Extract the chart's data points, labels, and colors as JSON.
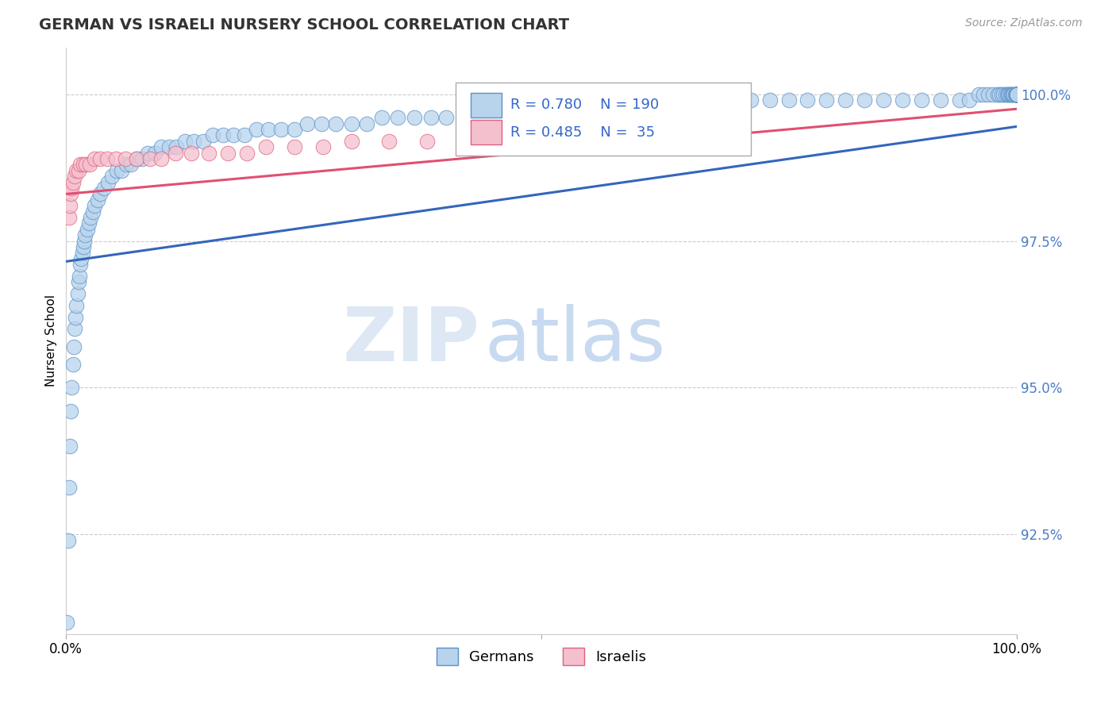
{
  "title": "GERMAN VS ISRAELI NURSERY SCHOOL CORRELATION CHART",
  "source_text": "Source: ZipAtlas.com",
  "ylabel": "Nursery School",
  "xlim": [
    0.0,
    1.0
  ],
  "ylim": [
    0.908,
    1.008
  ],
  "ytick_vals": [
    0.925,
    0.95,
    0.975,
    1.0
  ],
  "ytick_labels": [
    "92.5%",
    "95.0%",
    "97.5%",
    "100.0%"
  ],
  "german_color": "#b8d4ec",
  "german_edge_color": "#5b8fc9",
  "israeli_color": "#f5c0ce",
  "israeli_edge_color": "#e0607a",
  "german_line_color": "#3366bb",
  "israeli_line_color": "#e05070",
  "legend_r_german": "R = 0.780",
  "legend_n_german": "N = 190",
  "legend_r_israeli": "R = 0.485",
  "legend_n_israeli": "N =  35",
  "watermark_zip": "ZIP",
  "watermark_atlas": "atlas",
  "background_color": "#ffffff",
  "german_x": [
    0.001,
    0.002,
    0.003,
    0.004,
    0.005,
    0.006,
    0.007,
    0.008,
    0.009,
    0.01,
    0.011,
    0.012,
    0.013,
    0.014,
    0.015,
    0.016,
    0.017,
    0.018,
    0.019,
    0.02,
    0.022,
    0.024,
    0.026,
    0.028,
    0.03,
    0.033,
    0.036,
    0.04,
    0.044,
    0.048,
    0.053,
    0.058,
    0.063,
    0.068,
    0.074,
    0.08,
    0.086,
    0.093,
    0.1,
    0.108,
    0.116,
    0.125,
    0.134,
    0.144,
    0.154,
    0.165,
    0.176,
    0.188,
    0.2,
    0.213,
    0.226,
    0.24,
    0.254,
    0.269,
    0.284,
    0.3,
    0.316,
    0.332,
    0.349,
    0.366,
    0.384,
    0.4,
    0.42,
    0.44,
    0.46,
    0.48,
    0.5,
    0.52,
    0.54,
    0.56,
    0.58,
    0.6,
    0.62,
    0.64,
    0.66,
    0.68,
    0.7,
    0.72,
    0.74,
    0.76,
    0.78,
    0.8,
    0.82,
    0.84,
    0.86,
    0.88,
    0.9,
    0.92,
    0.94,
    0.95,
    0.96,
    0.965,
    0.97,
    0.975,
    0.98,
    0.982,
    0.984,
    0.986,
    0.988,
    0.99,
    0.991,
    0.992,
    0.993,
    0.994,
    0.995,
    0.996,
    0.997,
    0.998,
    0.999,
    1.0,
    1.0,
    1.0,
    1.0,
    1.0,
    1.0,
    1.0,
    1.0,
    1.0,
    1.0,
    1.0,
    1.0,
    1.0,
    1.0,
    1.0,
    1.0,
    1.0,
    1.0,
    1.0,
    1.0,
    1.0,
    1.0,
    1.0,
    1.0,
    1.0,
    1.0,
    1.0,
    1.0,
    1.0,
    1.0,
    1.0,
    1.0,
    1.0,
    1.0,
    1.0,
    1.0,
    1.0,
    1.0,
    1.0,
    1.0,
    1.0,
    1.0,
    1.0,
    1.0,
    1.0,
    1.0,
    1.0,
    1.0,
    1.0,
    1.0,
    1.0,
    1.0,
    1.0,
    1.0,
    1.0,
    1.0,
    1.0,
    1.0,
    1.0,
    1.0,
    1.0,
    1.0,
    1.0,
    1.0,
    1.0,
    1.0,
    1.0,
    1.0,
    1.0,
    1.0,
    1.0,
    1.0,
    1.0,
    1.0,
    1.0,
    1.0,
    1.0,
    1.0,
    1.0,
    1.0,
    1.0,
    1.0,
    1.0,
    1.0,
    1.0,
    1.0,
    1.0,
    1.0,
    1.0,
    1.0,
    1.0
  ],
  "german_y": [
    0.91,
    0.924,
    0.933,
    0.94,
    0.946,
    0.95,
    0.954,
    0.957,
    0.96,
    0.962,
    0.964,
    0.966,
    0.968,
    0.969,
    0.971,
    0.972,
    0.973,
    0.974,
    0.975,
    0.976,
    0.977,
    0.978,
    0.979,
    0.98,
    0.981,
    0.982,
    0.983,
    0.984,
    0.985,
    0.986,
    0.987,
    0.987,
    0.988,
    0.988,
    0.989,
    0.989,
    0.99,
    0.99,
    0.991,
    0.991,
    0.991,
    0.992,
    0.992,
    0.992,
    0.993,
    0.993,
    0.993,
    0.993,
    0.994,
    0.994,
    0.994,
    0.994,
    0.995,
    0.995,
    0.995,
    0.995,
    0.995,
    0.996,
    0.996,
    0.996,
    0.996,
    0.996,
    0.997,
    0.997,
    0.997,
    0.997,
    0.997,
    0.997,
    0.997,
    0.998,
    0.998,
    0.998,
    0.998,
    0.998,
    0.998,
    0.998,
    0.998,
    0.999,
    0.999,
    0.999,
    0.999,
    0.999,
    0.999,
    0.999,
    0.999,
    0.999,
    0.999,
    0.999,
    0.999,
    0.999,
    1.0,
    1.0,
    1.0,
    1.0,
    1.0,
    1.0,
    1.0,
    1.0,
    1.0,
    1.0,
    1.0,
    1.0,
    1.0,
    1.0,
    1.0,
    1.0,
    1.0,
    1.0,
    1.0,
    1.0,
    1.0,
    1.0,
    1.0,
    1.0,
    1.0,
    1.0,
    1.0,
    1.0,
    1.0,
    1.0,
    1.0,
    1.0,
    1.0,
    1.0,
    1.0,
    1.0,
    1.0,
    1.0,
    1.0,
    1.0,
    1.0,
    1.0,
    1.0,
    1.0,
    1.0,
    1.0,
    1.0,
    1.0,
    1.0,
    1.0,
    1.0,
    1.0,
    1.0,
    1.0,
    1.0,
    1.0,
    1.0,
    1.0,
    1.0,
    1.0,
    1.0,
    1.0,
    1.0,
    1.0,
    1.0,
    1.0,
    1.0,
    1.0,
    1.0,
    1.0,
    1.0,
    1.0,
    1.0,
    1.0,
    1.0,
    1.0,
    1.0,
    1.0,
    1.0,
    1.0,
    1.0,
    1.0,
    1.0,
    1.0,
    1.0,
    1.0,
    1.0,
    1.0,
    1.0,
    1.0,
    1.0,
    1.0,
    1.0,
    1.0,
    1.0,
    1.0,
    1.0,
    1.0,
    1.0,
    1.0,
    1.0,
    1.0,
    1.0,
    1.0,
    1.0,
    1.0,
    1.0,
    1.0,
    1.0,
    1.0
  ],
  "israeli_x": [
    0.003,
    0.004,
    0.005,
    0.006,
    0.007,
    0.009,
    0.011,
    0.013,
    0.015,
    0.018,
    0.021,
    0.025,
    0.03,
    0.036,
    0.043,
    0.052,
    0.062,
    0.074,
    0.088,
    0.1,
    0.115,
    0.132,
    0.15,
    0.17,
    0.19,
    0.21,
    0.24,
    0.27,
    0.3,
    0.34,
    0.38,
    0.42,
    0.47,
    0.53,
    0.59
  ],
  "israeli_y": [
    0.979,
    0.981,
    0.983,
    0.984,
    0.985,
    0.986,
    0.987,
    0.987,
    0.988,
    0.988,
    0.988,
    0.988,
    0.989,
    0.989,
    0.989,
    0.989,
    0.989,
    0.989,
    0.989,
    0.989,
    0.99,
    0.99,
    0.99,
    0.99,
    0.99,
    0.991,
    0.991,
    0.991,
    0.992,
    0.992,
    0.992,
    0.993,
    0.993,
    0.994,
    0.994
  ],
  "german_trend_x": [
    0.0,
    1.0
  ],
  "german_trend_y": [
    0.9715,
    0.9945
  ],
  "israeli_trend_x": [
    0.0,
    1.0
  ],
  "israeli_trend_y": [
    0.983,
    0.9975
  ]
}
